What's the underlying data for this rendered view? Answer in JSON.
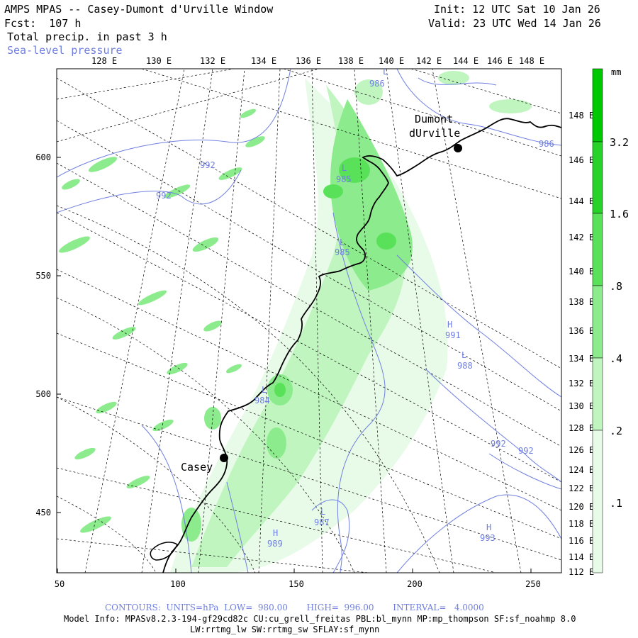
{
  "header": {
    "title": "AMPS MPAS -- Casey-Dumont d'Urville Window",
    "forecast": "Fcst:  107 h",
    "field": "Total precip. in past 3 h",
    "overlay": "Sea-level pressure",
    "init": "Init: 12 UTC Sat 10 Jan 26",
    "valid": "Valid: 23 UTC Wed 14 Jan 26"
  },
  "lon_labels_top": [
    "128 E",
    "130 E",
    "132 E",
    "134 E",
    "136 E",
    "138 E",
    "140 E",
    "142 E",
    "144 E",
    "146 E",
    "148 E"
  ],
  "lon_labels_right": [
    "148 E",
    "146 E",
    "144 E",
    "142 E",
    "140 E",
    "138 E",
    "136 E",
    "134 E",
    "132 E",
    "130 E",
    "128 E",
    "126 E",
    "124 E",
    "122 E",
    "120 E",
    "118 E",
    "116 E",
    "114 E",
    "112 E"
  ],
  "y_axis_ticks": [
    "600",
    "550",
    "500",
    "450"
  ],
  "x_axis_ticks": [
    "50",
    "100",
    "150",
    "200",
    "250"
  ],
  "stations": [
    {
      "name": "Dumont",
      "name2": "dUrville"
    },
    {
      "name": "Casey"
    }
  ],
  "pressure_labels": [
    {
      "text": "986"
    },
    {
      "text": "986"
    },
    {
      "text": "992"
    },
    {
      "text": "992"
    },
    {
      "text": "L"
    },
    {
      "text": "985"
    },
    {
      "text": "L"
    },
    {
      "text": "985"
    },
    {
      "text": "H"
    },
    {
      "text": "991"
    },
    {
      "text": "L"
    },
    {
      "text": "988"
    },
    {
      "text": "L"
    },
    {
      "text": "984"
    },
    {
      "text": "992"
    },
    {
      "text": "992"
    },
    {
      "text": "L"
    },
    {
      "text": "987"
    },
    {
      "text": "H"
    },
    {
      "text": "989"
    },
    {
      "text": "H"
    },
    {
      "text": "993"
    },
    {
      "text": "L"
    }
  ],
  "colorbar": {
    "unit": "mm",
    "labels": [
      "3.2",
      "1.6",
      ".8",
      ".4",
      ".2",
      ".1"
    ],
    "colors": [
      "#00c800",
      "#28d228",
      "#5ae15a",
      "#8ceb8c",
      "#c0f5c0",
      "#e8fbe8"
    ]
  },
  "footer": {
    "contours": "CONTOURS:  UNITS=hPa  LOW=  980.00       HIGH=  996.00       INTERVAL=   4.0000",
    "model_info": "Model Info: MPASv8.2.3-194-gf29cd82c CU:cu_grell_freitas PBL:bl_mynn MP:mp_thompson SF:sf_noahmp 8.0",
    "model_info2": "LW:rrtmg_lw SW:rrtmg_sw SFLAY:sf_mynn"
  },
  "colors": {
    "slp_contour": "#6f7fe0",
    "coast": "#000000",
    "grid": "#000000"
  }
}
